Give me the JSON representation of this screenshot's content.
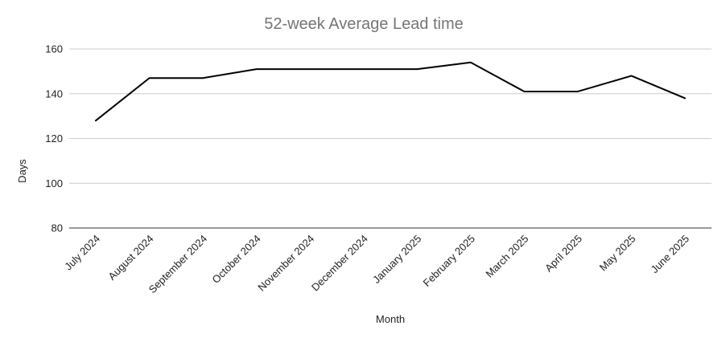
{
  "chart_data": {
    "type": "line",
    "title": "52-week Average Lead time",
    "xlabel": "Month",
    "ylabel": "Days",
    "categories": [
      "July 2024",
      "August 2024",
      "September 2024",
      "October 2024",
      "November 2024",
      "December 2024",
      "January 2025",
      "February 2025",
      "March 2025",
      "April 2025",
      "May 2025",
      "June 2025"
    ],
    "series": [
      {
        "values": [
          128,
          147,
          147,
          151,
          151,
          151,
          151,
          154,
          141,
          141,
          148,
          138
        ],
        "color": "#000000"
      }
    ],
    "ylim": [
      80,
      160
    ],
    "yticks": [
      80,
      100,
      120,
      140,
      160
    ],
    "grid": true,
    "legend": "none"
  }
}
